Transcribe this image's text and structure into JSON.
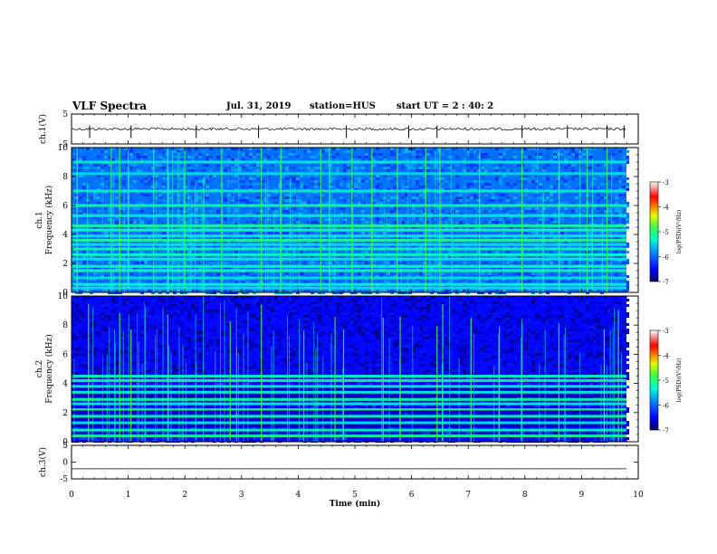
{
  "header": {
    "title": "VLF Spectra",
    "date": "Jul. 31, 2019",
    "station": "station=HUS",
    "start": "start UT =  2 : 40: 2"
  },
  "chart_data": [
    {
      "type": "line",
      "name": "ch1-waveform",
      "ylabel": "ch.1(V)",
      "ylim": [
        -5,
        5
      ],
      "yticks": [
        "5",
        "-5"
      ],
      "xlim": [
        0,
        10
      ],
      "baseline": 0,
      "spikes_min": [
        0.32,
        1.05,
        2.2,
        3.3,
        4.85,
        5.95,
        6.45,
        7.95,
        8.75,
        9.45,
        9.75
      ]
    },
    {
      "type": "heatmap",
      "name": "ch1-spectrogram",
      "ylabel": "Frequency (kHz)",
      "channel_label": "ch.1",
      "ylim": [
        0,
        10
      ],
      "yticks": [
        "0",
        "2",
        "4",
        "6",
        "8",
        "10"
      ],
      "xlim": [
        0,
        10
      ],
      "horizontal_bands_khz": [
        0.3,
        0.55,
        1.0,
        1.5,
        1.8,
        2.3,
        2.6,
        3.0,
        3.3,
        3.6,
        3.9,
        4.3,
        4.6,
        5.3,
        6.0,
        7.0,
        8.2,
        9.0
      ],
      "vertical_bursts_min": [
        0.1,
        0.7,
        0.85,
        1.0,
        1.45,
        1.7,
        2.0,
        2.65,
        3.35,
        3.7,
        4.4,
        4.55,
        4.95,
        5.3,
        5.75,
        6.25,
        6.5,
        7.2,
        7.95,
        8.6,
        9.1,
        9.45
      ]
    },
    {
      "type": "heatmap",
      "name": "ch2-spectrogram",
      "ylabel": "Frequency (kHz)",
      "channel_label": "ch.2",
      "ylim": [
        0,
        10
      ],
      "yticks": [
        "0",
        "2",
        "4",
        "6",
        "8",
        "10"
      ],
      "xlim": [
        0,
        10
      ],
      "horizontal_bands_khz": [
        0.4,
        0.8,
        1.3,
        1.75,
        2.2,
        2.6,
        2.9,
        3.4,
        3.8,
        4.2,
        4.5
      ],
      "vertical_bursts_min": [
        0.3,
        0.85,
        1.05,
        1.7,
        2.8,
        3.35,
        4.1,
        4.65,
        4.8,
        5.5,
        5.8,
        6.45,
        6.55,
        7.05,
        7.55,
        8.6,
        9.4,
        9.65
      ]
    },
    {
      "type": "line",
      "name": "ch3-waveform",
      "ylabel": "ch.3(V)",
      "ylim": [
        -5,
        5
      ],
      "yticks": [
        "5",
        "0",
        "-5"
      ],
      "xlim": [
        0,
        10
      ],
      "baseline": -2
    }
  ],
  "x_axis": {
    "label": "Time (min)",
    "ticks": [
      "0",
      "1",
      "2",
      "3",
      "4",
      "5",
      "6",
      "7",
      "8",
      "9",
      "10"
    ]
  },
  "colorbar": {
    "label": "log(PSD)(V²/Hz)",
    "ticks": [
      "-3",
      "-4",
      "-5",
      "-6",
      "-7"
    ],
    "range": [
      -7,
      -3
    ],
    "colors": [
      "#000080",
      "#0000ff",
      "#00a0ff",
      "#00ffc0",
      "#40ff40",
      "#c0ff00",
      "#ffff00",
      "#ff8000",
      "#ff0000",
      "#ffffff"
    ]
  }
}
